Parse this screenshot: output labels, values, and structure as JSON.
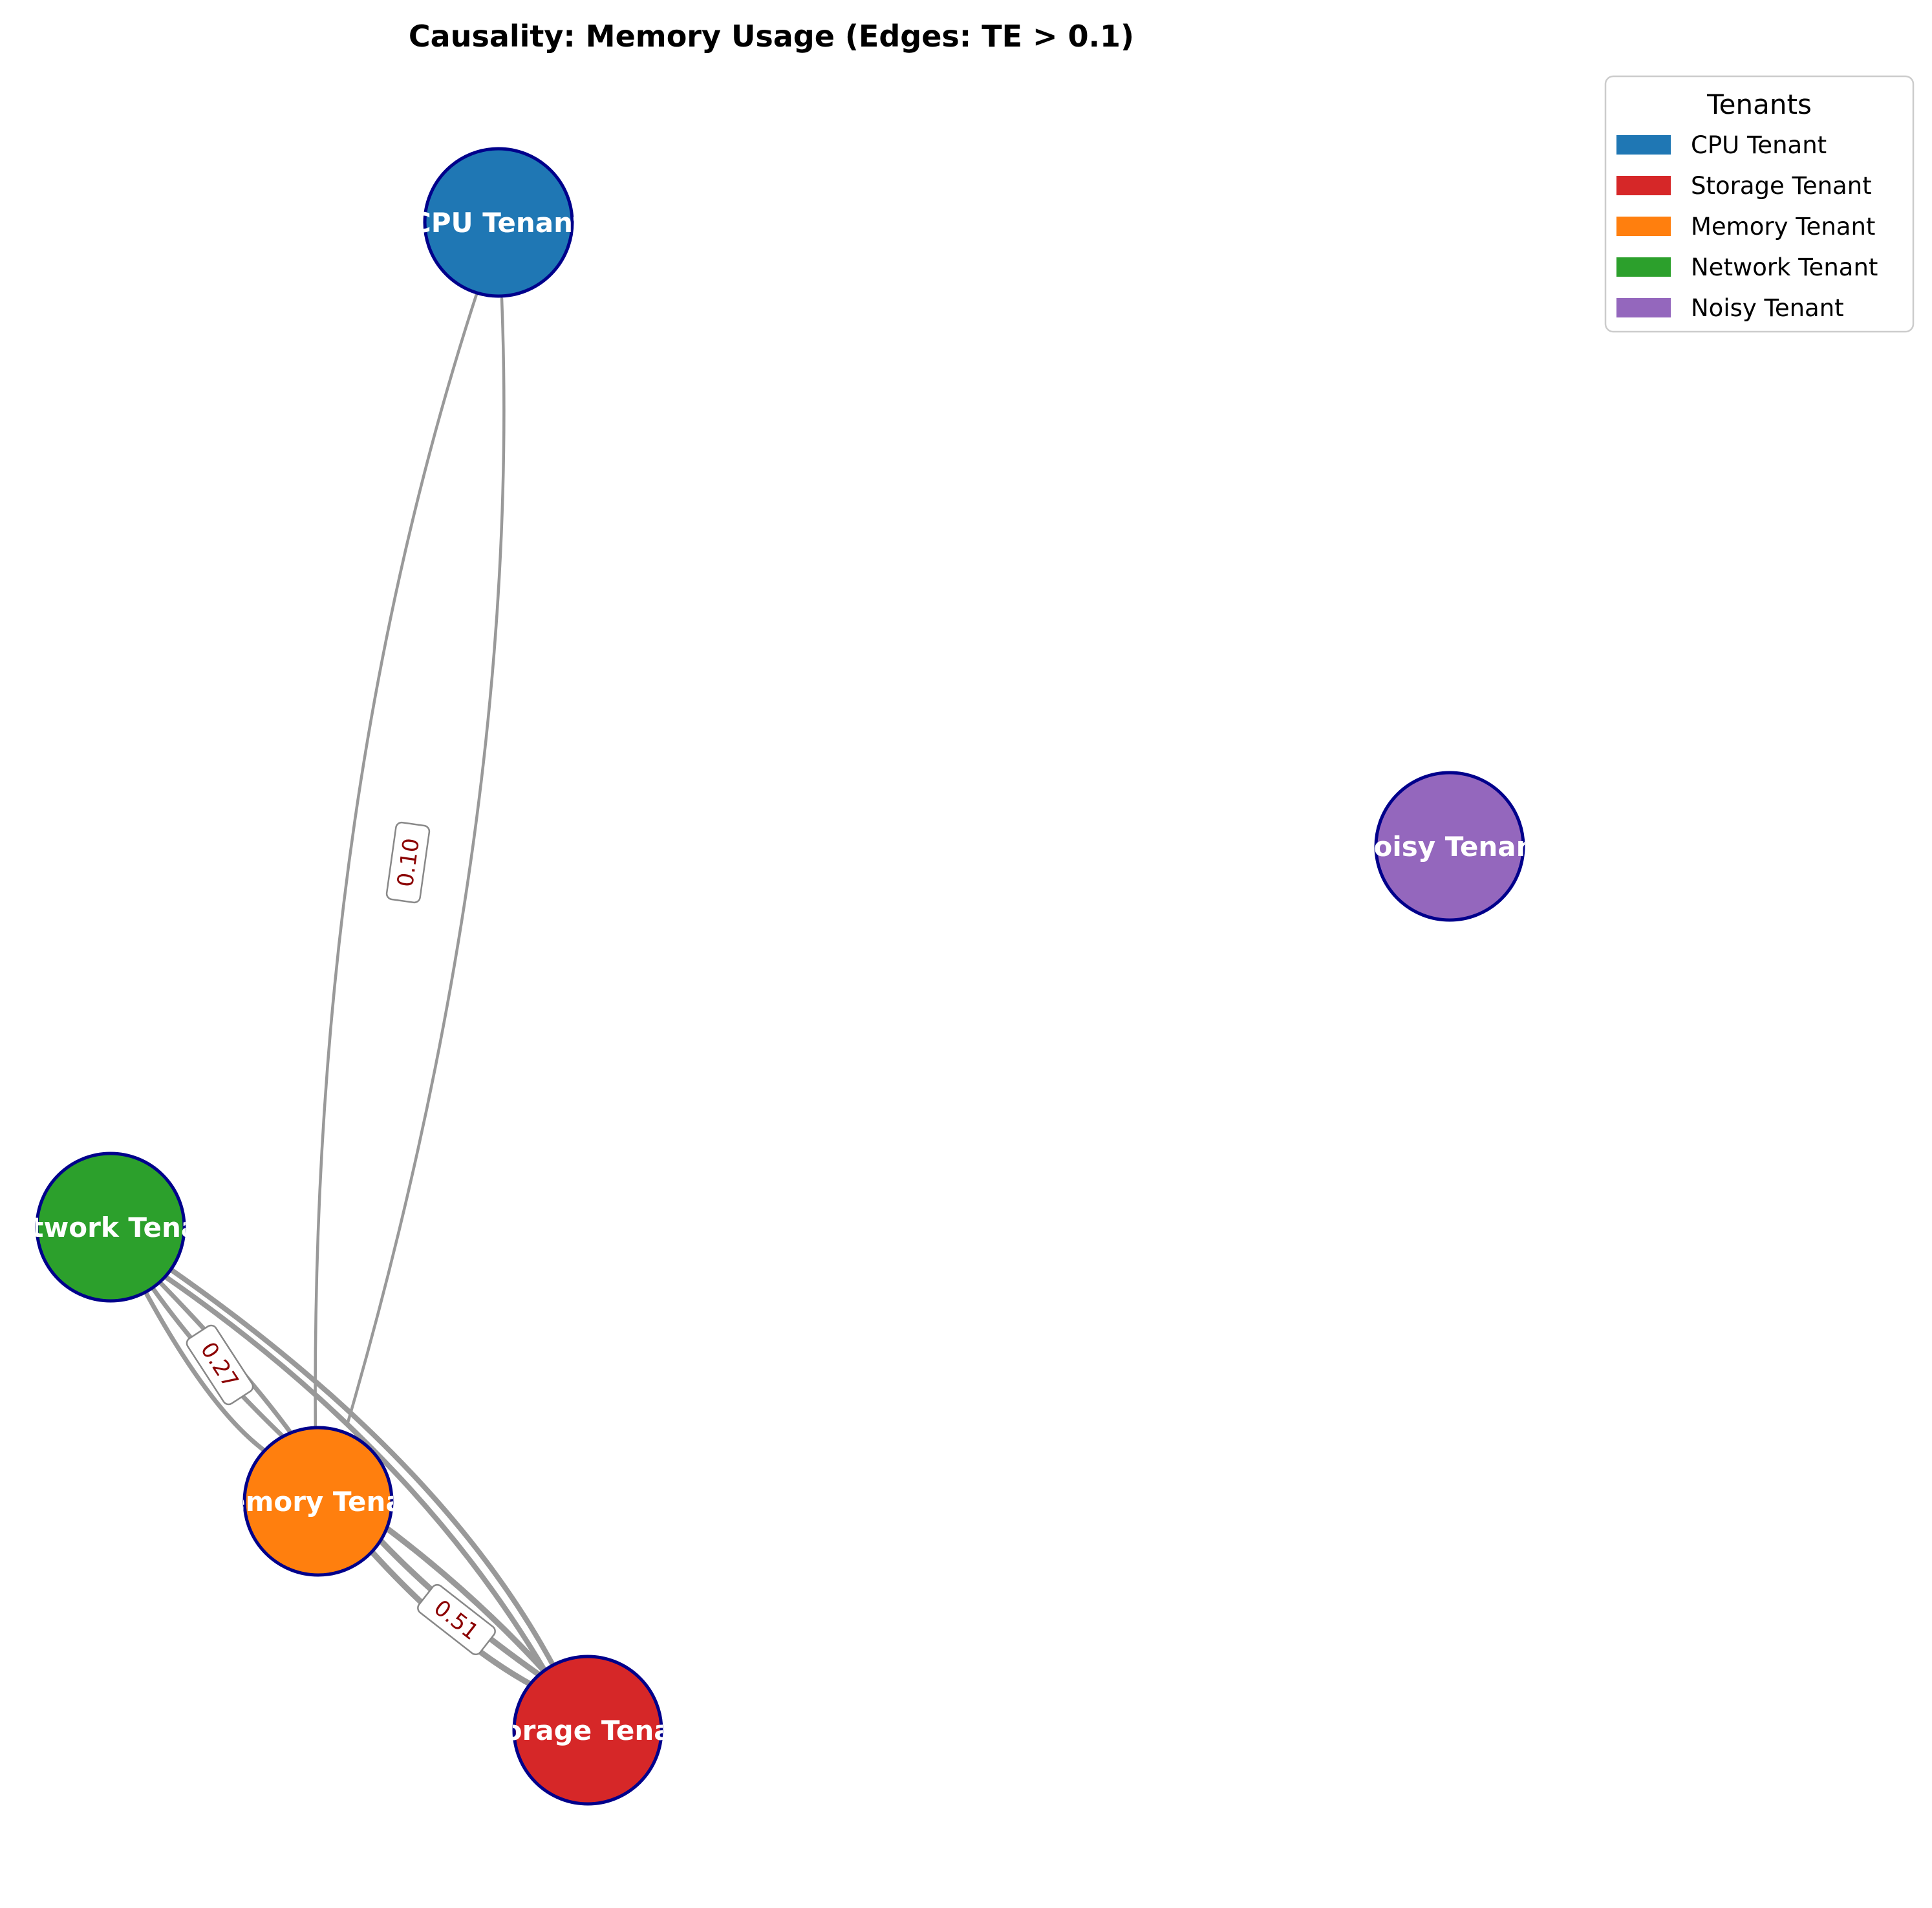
{
  "title": "Causality: Memory Usage (Edges: TE > 0.1)",
  "legend": {
    "title": "Tenants",
    "items": [
      {
        "label": "CPU Tenant",
        "color": "#1f77b4"
      },
      {
        "label": "Storage Tenant",
        "color": "#d62728"
      },
      {
        "label": "Memory Tenant",
        "color": "#ff7f0e"
      },
      {
        "label": "Network Tenant",
        "color": "#2ca02c"
      },
      {
        "label": "Noisy Tenant",
        "color": "#9467bd"
      }
    ]
  },
  "nodes": [
    {
      "id": "cpu",
      "label": "CPU Tenant",
      "color": "#1f77b4"
    },
    {
      "id": "noisy",
      "label": "Noisy Tenant",
      "color": "#9467bd"
    },
    {
      "id": "network",
      "label": "Network Tenant",
      "color": "#2ca02c"
    },
    {
      "id": "memory",
      "label": "Memory Tenant",
      "color": "#ff7f0e"
    },
    {
      "id": "storage",
      "label": "Storage Tenant",
      "color": "#d62728"
    }
  ],
  "node_outline_color": "#00008b",
  "edge_color": "#999999",
  "edge_label_color": "#8b0000",
  "edge_labels": [
    "0.10",
    "0.27",
    "0.51"
  ]
}
